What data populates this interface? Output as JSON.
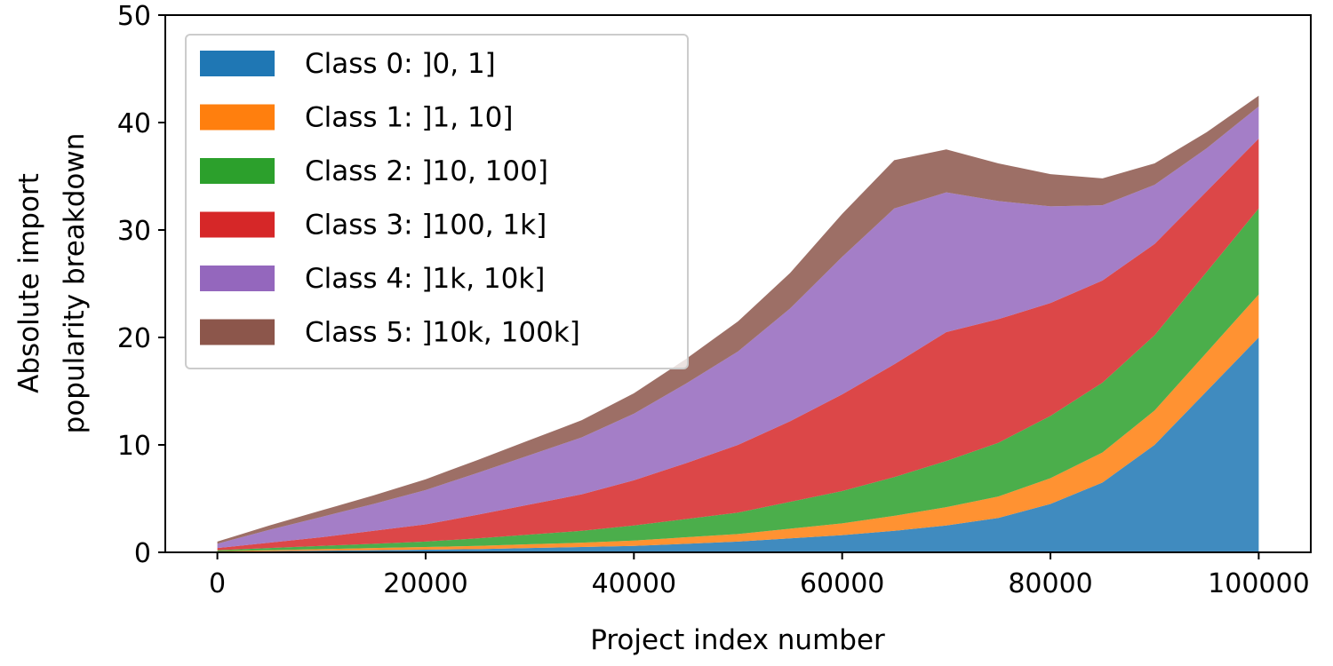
{
  "chart_data": {
    "type": "area",
    "title": "",
    "xlabel": "Project index number",
    "ylabel_line1": "Absolute import",
    "ylabel_line2": "popularity breakdown",
    "xlim": [
      -5000,
      105000
    ],
    "ylim": [
      0,
      50
    ],
    "xticks": [
      {
        "value": 0,
        "label": "0"
      },
      {
        "value": 20000,
        "label": "20000"
      },
      {
        "value": 40000,
        "label": "40000"
      },
      {
        "value": 60000,
        "label": "60000"
      },
      {
        "value": 80000,
        "label": "80000"
      },
      {
        "value": 100000,
        "label": "100000"
      }
    ],
    "yticks": [
      {
        "value": 0,
        "label": "0"
      },
      {
        "value": 10,
        "label": "10"
      },
      {
        "value": 20,
        "label": "20"
      },
      {
        "value": 30,
        "label": "30"
      },
      {
        "value": 40,
        "label": "40"
      },
      {
        "value": 50,
        "label": "50"
      }
    ],
    "grid": false,
    "legend_position": "top-left",
    "x": [
      0,
      5000,
      10000,
      15000,
      20000,
      25000,
      30000,
      35000,
      40000,
      45000,
      50000,
      55000,
      60000,
      65000,
      70000,
      75000,
      80000,
      85000,
      90000,
      95000,
      100000
    ],
    "series": [
      {
        "name": "Class 0: ]0, 1]",
        "color": "#1f77b4",
        "values": [
          0.05,
          0.1,
          0.15,
          0.2,
          0.25,
          0.3,
          0.4,
          0.5,
          0.6,
          0.8,
          1.0,
          1.3,
          1.6,
          2.0,
          2.5,
          3.2,
          4.5,
          6.5,
          10,
          15,
          20
        ]
      },
      {
        "name": "Class 1: ]1, 10]",
        "color": "#ff7f0e",
        "values": [
          0.05,
          0.1,
          0.15,
          0.2,
          0.25,
          0.3,
          0.35,
          0.4,
          0.5,
          0.6,
          0.7,
          0.9,
          1.1,
          1.4,
          1.7,
          2.0,
          2.4,
          2.8,
          3.2,
          3.6,
          4.0
        ]
      },
      {
        "name": "Class 2: ]10, 100]",
        "color": "#2ca02c",
        "values": [
          0.1,
          0.2,
          0.3,
          0.4,
          0.5,
          0.7,
          0.9,
          1.1,
          1.4,
          1.7,
          2.0,
          2.5,
          3.0,
          3.6,
          4.3,
          5.0,
          5.8,
          6.5,
          7.0,
          7.5,
          8.0
        ]
      },
      {
        "name": "Class 3: ]100, 1k]",
        "color": "#d62728",
        "values": [
          0.2,
          0.5,
          0.8,
          1.2,
          1.6,
          2.2,
          2.8,
          3.4,
          4.2,
          5.2,
          6.3,
          7.5,
          9.0,
          10.5,
          12.0,
          11.5,
          10.5,
          9.5,
          8.5,
          7.5,
          6.5
        ]
      },
      {
        "name": "Class 4: ]1k, 10k]",
        "color": "#9467bd",
        "values": [
          0.4,
          1.2,
          1.9,
          2.5,
          3.2,
          3.9,
          4.6,
          5.3,
          6.2,
          7.4,
          8.7,
          10.5,
          12.8,
          14.5,
          13.0,
          11.0,
          9.0,
          7.0,
          5.5,
          4.0,
          3.0
        ]
      },
      {
        "name": "Class 5: ]10k, 100k]",
        "color": "#8c564b",
        "values": [
          0.2,
          0.4,
          0.6,
          0.8,
          1.0,
          1.2,
          1.4,
          1.6,
          1.9,
          2.3,
          2.8,
          3.3,
          4.0,
          4.5,
          4.0,
          3.5,
          3.0,
          2.5,
          2.0,
          1.5,
          1.0
        ]
      }
    ]
  }
}
